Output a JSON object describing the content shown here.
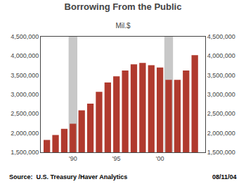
{
  "chart_data": {
    "type": "bar",
    "title": "Borrowing From the Public",
    "subtitle": "Mil.$",
    "annotations": [
      "Source:  U.S. Treasury /Haver Analytics",
      "08/11/04"
    ],
    "x": [
      1987,
      1988,
      1989,
      1990,
      1991,
      1992,
      1993,
      1994,
      1995,
      1996,
      1997,
      1998,
      1999,
      2000,
      2001,
      2002,
      2003,
      2004
    ],
    "values": [
      1820000,
      1950000,
      2110000,
      2240000,
      2590000,
      2760000,
      3070000,
      3310000,
      3470000,
      3620000,
      3780000,
      3820000,
      3760000,
      3700000,
      3380000,
      3380000,
      3620000,
      4020000
    ],
    "color": "#B03A2E",
    "shade_regions": [
      {
        "xstart": 1989.5,
        "xend": 1990.5,
        "color": "#C8C8C8"
      },
      {
        "xstart": 2000.5,
        "xend": 2001.5,
        "color": "#C8C8C8"
      }
    ],
    "xlim": [
      1986.3,
      2005.2
    ],
    "xticks": [
      {
        "value": 1990,
        "label": "'90"
      },
      {
        "value": 1995,
        "label": "'95"
      },
      {
        "value": 2000,
        "label": "'00"
      }
    ],
    "ylim": [
      1500000,
      4500000
    ],
    "yticks": [
      {
        "value": 1500000,
        "label": "1,500,000"
      },
      {
        "value": 2000000,
        "label": "2,000,000"
      },
      {
        "value": 2500000,
        "label": "2,500,000"
      },
      {
        "value": 3000000,
        "label": "3,000,000"
      },
      {
        "value": 3500000,
        "label": "3,500,000"
      },
      {
        "value": 4000000,
        "label": "4,000,000"
      },
      {
        "value": 4500000,
        "label": "4,500,000"
      }
    ],
    "y2lim": [
      1500000,
      4500000
    ],
    "y2ticks": [
      {
        "value": 1500000,
        "label": "1,500,000"
      },
      {
        "value": 2000000,
        "label": "2,000,000"
      },
      {
        "value": 2500000,
        "label": "2,500,000"
      },
      {
        "value": 3000000,
        "label": "3,000,000"
      },
      {
        "value": 3500000,
        "label": "3,500,000"
      },
      {
        "value": 4000000,
        "label": "4,000,000"
      },
      {
        "value": 4500000,
        "label": "4,500,000"
      }
    ],
    "grid": false
  }
}
